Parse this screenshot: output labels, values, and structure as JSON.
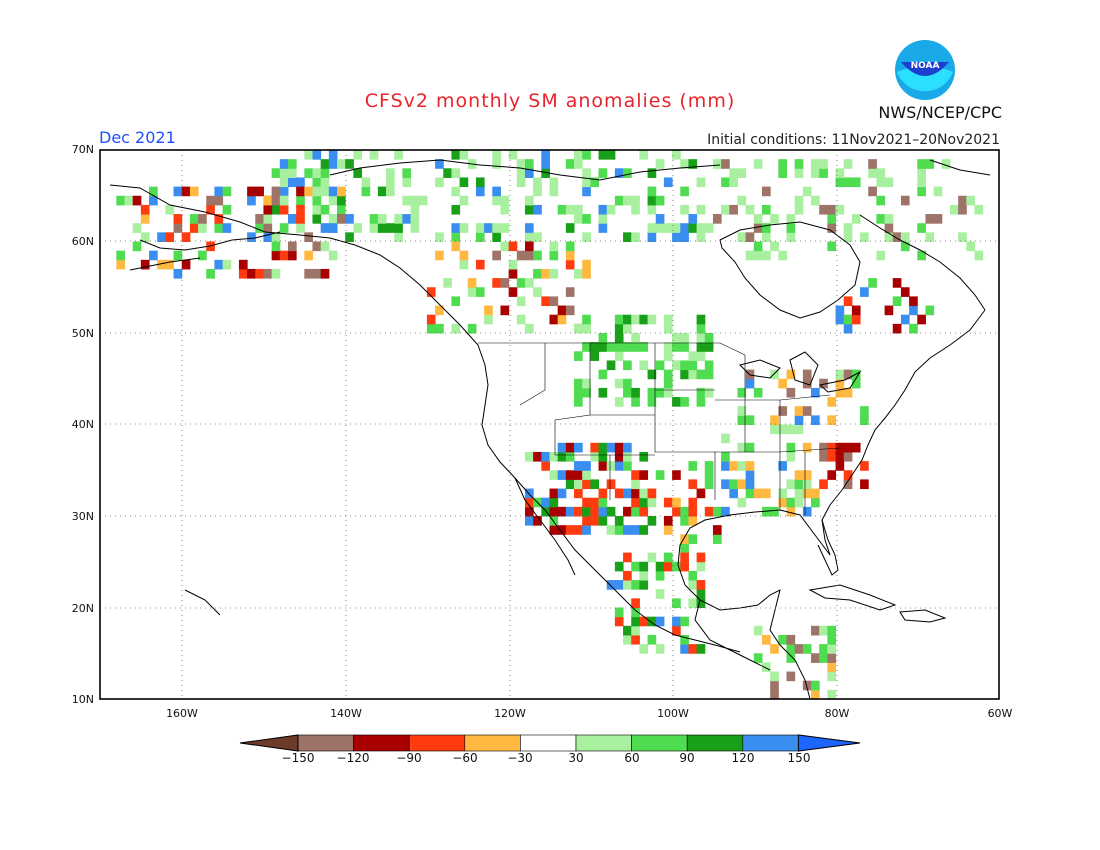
{
  "title": "CFSv2 monthly SM anomalies (mm)",
  "valid_month": "Dec 2021",
  "initial_conditions": "Initial conditions: 11Nov2021–20Nov2021",
  "agency": "NWS/NCEP/CPC",
  "logo_text": "NOAA",
  "map": {
    "lat_labels": [
      "70N",
      "60N",
      "50N",
      "40N",
      "30N",
      "20N",
      "10N"
    ],
    "lon_labels": [
      "160W",
      "140W",
      "120W",
      "100W",
      "80W",
      "60W"
    ],
    "extent": {
      "lon_min": -170,
      "lon_max": -60,
      "lat_min": 10,
      "lat_max": 70
    }
  },
  "colorbar": {
    "labels": [
      "−150",
      "−120",
      "−90",
      "−60",
      "−30",
      "30",
      "60",
      "90",
      "120",
      "150"
    ],
    "colors": [
      "#6e3a28",
      "#9e7468",
      "#a80000",
      "#ff3c10",
      "#ffb840",
      "#ffffff",
      "#a8f0a0",
      "#50dc50",
      "#18a018",
      "#3a8ef0",
      "#1e64ff"
    ]
  },
  "chart_data": {
    "type": "heatmap",
    "title": "CFSv2 monthly SM anomalies (mm)",
    "units": "mm",
    "xlabel": "",
    "ylabel": "",
    "xlim": [
      -170,
      -60
    ],
    "ylim": [
      10,
      70
    ],
    "color_levels": [
      -150,
      -120,
      -90,
      -60,
      -30,
      30,
      60,
      90,
      120,
      150
    ],
    "regions": [
      {
        "name": "Northern Canada / Arctic",
        "anomaly": "light green (30 to 60)"
      },
      {
        "name": "Southern Rockies / Arizona / New Mexico",
        "anomaly": "green to blue (60 to 150)"
      },
      {
        "name": "Texas / Southern Plains",
        "anomaly": "orange to dark red (-30 to -120)"
      },
      {
        "name": "Carolinas / Southeast coast",
        "anomaly": "dark red (-90 to -150)"
      },
      {
        "name": "Great Lakes / Ohio Valley",
        "anomaly": "mixed orange and green (-60 to 60)"
      },
      {
        "name": "British Columbia interior",
        "anomaly": "orange to red (-30 to -90)"
      }
    ]
  }
}
